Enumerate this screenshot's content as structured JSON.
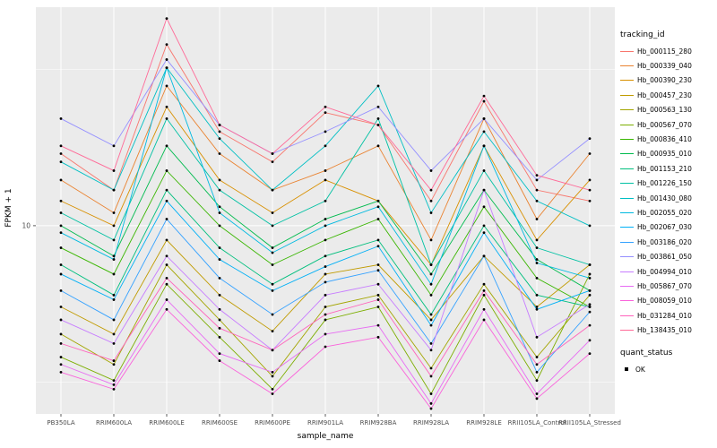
{
  "figure": {
    "background": "#FFFFFF",
    "panel_background": "#EBEBEB",
    "grid_color": "#FFFFFF",
    "tick_text_color": "#4D4D4D",
    "point_color": "#000000"
  },
  "chart_data": {
    "type": "line",
    "title": "",
    "xlabel": "sample_name",
    "ylabel": "FPKM + 1",
    "y_scale": "log10",
    "ylim": [
      2.5,
      50
    ],
    "y_ticks": [
      10
    ],
    "y_minor_ticks": [
      3.162,
      31.62
    ],
    "grid": true,
    "legend": {
      "position": "right",
      "color_title": "tracking_id",
      "shape_title": "quant_status",
      "shape_items": [
        {
          "label": "OK"
        }
      ]
    },
    "categories": [
      "PB350LA",
      "RRIM600LA",
      "RRIM600LE",
      "RRIM600SE",
      "RRIM600PE",
      "RRIM901LA",
      "RRIM928BA",
      "RRIM928LA",
      "RRIM928LE",
      "RRII105LA_Control",
      "RRII105LA_Stressed"
    ],
    "series": [
      {
        "name": "Hb_000115_280",
        "color": "#F8766D",
        "values": [
          17,
          13,
          38,
          20,
          16,
          23,
          21,
          12,
          25,
          13,
          12
        ]
      },
      {
        "name": "Hb_000339_040",
        "color": "#EA8331",
        "values": [
          14,
          11,
          28,
          17,
          13,
          15,
          18,
          9,
          22,
          10.5,
          17
        ]
      },
      {
        "name": "Hb_000390_230",
        "color": "#D89000",
        "values": [
          12,
          10,
          24,
          14,
          11,
          14,
          12,
          7.5,
          18,
          9,
          14
        ]
      },
      {
        "name": "Hb_000457_230",
        "color": "#C09B00",
        "values": [
          5.5,
          4.5,
          9,
          6,
          4.6,
          7,
          7.5,
          5,
          8,
          5.5,
          7.5
        ]
      },
      {
        "name": "Hb_000563_130",
        "color": "#A3A500",
        "values": [
          4.5,
          3.6,
          7.5,
          5,
          3.3,
          5.5,
          6,
          3.5,
          6.5,
          3.8,
          6
        ]
      },
      {
        "name": "Hb_000567_070",
        "color": "#7CAE00",
        "values": [
          3.8,
          3.2,
          6.5,
          4.4,
          3.0,
          5,
          5.5,
          2.9,
          6,
          3.2,
          7
        ]
      },
      {
        "name": "Hb_000836_410",
        "color": "#39B600",
        "values": [
          8.5,
          7,
          15,
          10,
          7.5,
          9,
          10.5,
          6,
          11.5,
          6.8,
          5.5
        ]
      },
      {
        "name": "Hb_000935_010",
        "color": "#00BB4E",
        "values": [
          10,
          8,
          18,
          11.5,
          8.5,
          10.5,
          12,
          7,
          13,
          7.8,
          6.2
        ]
      },
      {
        "name": "Hb_001153_210",
        "color": "#00BF7D",
        "values": [
          7.5,
          6,
          13,
          8.5,
          6.5,
          8,
          9,
          5.2,
          10,
          6,
          5.5
        ]
      },
      {
        "name": "Hb_001226_150",
        "color": "#00C1A3",
        "values": [
          11,
          9,
          22,
          13,
          10,
          12,
          22,
          7.5,
          15,
          8.5,
          7.5
        ]
      },
      {
        "name": "Hb_001430_080",
        "color": "#00BFC4",
        "values": [
          16,
          13,
          32,
          19,
          13,
          18,
          28,
          11,
          20,
          12,
          10
        ]
      },
      {
        "name": "Hb_002055_020",
        "color": "#00BAE0",
        "values": [
          9.5,
          7.8,
          32,
          11,
          8.2,
          10,
          11.5,
          6.5,
          18,
          7.6,
          6.8
        ]
      },
      {
        "name": "Hb_002067_030",
        "color": "#00B0F6",
        "values": [
          7,
          5.8,
          12,
          7.8,
          6.2,
          7.4,
          8.6,
          4.8,
          9.5,
          5.4,
          6.2
        ]
      },
      {
        "name": "Hb_003186_020",
        "color": "#35A2FF",
        "values": [
          6.2,
          5,
          10.5,
          6.8,
          5.2,
          6.6,
          7.2,
          4.2,
          8,
          3.4,
          5.3
        ]
      },
      {
        "name": "Hb_003861_050",
        "color": "#9590FF",
        "values": [
          22,
          18,
          34,
          21,
          17,
          20,
          24,
          15,
          22,
          14,
          19
        ]
      },
      {
        "name": "Hb_004994_010",
        "color": "#C77CFF",
        "values": [
          5,
          4.2,
          8,
          5.4,
          4,
          6,
          6.5,
          4,
          13,
          4.4,
          5.6
        ]
      },
      {
        "name": "Hb_005867_070",
        "color": "#E76BF3",
        "values": [
          3.6,
          3.1,
          5.8,
          3.9,
          3.4,
          4.5,
          4.8,
          2.7,
          5.4,
          2.9,
          4.3
        ]
      },
      {
        "name": "Hb_008059_010",
        "color": "#FA62DB",
        "values": [
          3.4,
          3.0,
          5.4,
          3.7,
          2.9,
          4.1,
          4.4,
          2.6,
          5,
          2.8,
          3.9
        ]
      },
      {
        "name": "Hb_031284_010",
        "color": "#FF62BC",
        "values": [
          4.2,
          3.7,
          6.8,
          4.7,
          4,
          5.2,
          5.8,
          3.3,
          6.2,
          3.6,
          4.8
        ]
      },
      {
        "name": "Hb_138435_010",
        "color": "#FF6A98",
        "values": [
          18,
          15,
          46,
          21,
          17,
          24,
          21,
          13,
          26,
          14.5,
          13
        ]
      }
    ]
  }
}
